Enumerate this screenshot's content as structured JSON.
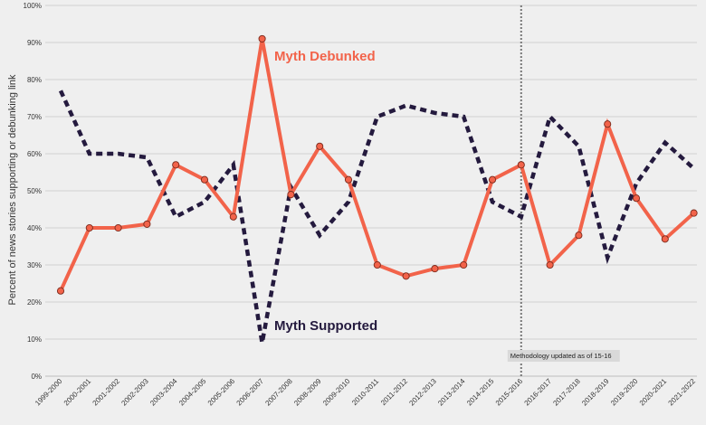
{
  "chart_data": {
    "type": "line",
    "title": "",
    "xlabel": "",
    "ylabel": "Percent of news stories supporting or debunking link",
    "ylim": [
      0,
      100
    ],
    "y_ticks": [
      "0%",
      "10%",
      "20%",
      "30%",
      "40%",
      "50%",
      "60%",
      "70%",
      "80%",
      "90%",
      "100%"
    ],
    "grid": true,
    "categories": [
      "1999-2000",
      "2000-2001",
      "2001-2002",
      "2002-2003",
      "2003-2004",
      "2004-2005",
      "2005-2006",
      "2006-2007",
      "2007-2008",
      "2008-2009",
      "2009-2010",
      "2010-2011",
      "2011-2012",
      "2012-2013",
      "2013-2014",
      "2014-2015",
      "2015-2016",
      "2016-2017",
      "2017-2018",
      "2018-2019",
      "2019-2020",
      "2020-2021",
      "2021-2022"
    ],
    "series": [
      {
        "name": "Myth Debunked",
        "color": "#f2634a",
        "style": "solid-with-markers",
        "values": [
          23,
          40,
          40,
          41,
          57,
          53,
          43,
          91,
          49,
          62,
          53,
          30,
          27,
          29,
          30,
          53,
          57,
          30,
          38,
          68,
          48,
          37,
          44
        ]
      },
      {
        "name": "Myth Supported",
        "color": "#241a3e",
        "style": "dashed",
        "values": [
          77,
          60,
          60,
          59,
          43,
          47,
          57,
          9,
          51,
          38,
          47,
          70,
          73,
          71,
          70,
          47,
          43,
          70,
          62,
          32,
          52,
          63,
          56
        ]
      }
    ],
    "annotation": {
      "text": "Methodology updated as of 15-16",
      "category": "2015-2016"
    }
  }
}
